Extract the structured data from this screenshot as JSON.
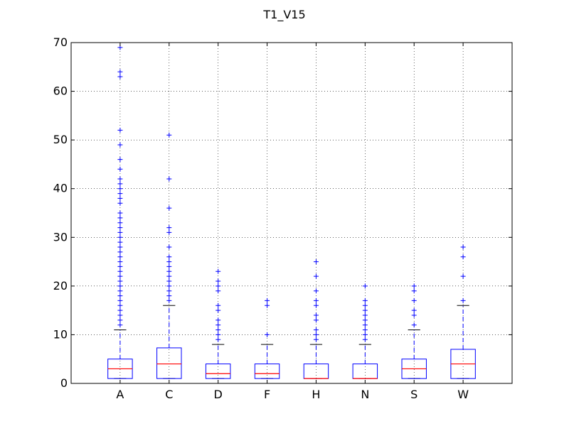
{
  "chart_data": {
    "type": "box",
    "title": "T1_V15",
    "xlabel": "",
    "ylabel": "",
    "ylim": [
      0,
      70
    ],
    "yticks": [
      0,
      10,
      20,
      30,
      40,
      50,
      60,
      70
    ],
    "grid": true,
    "colors": {
      "box": "#0000ff",
      "whisker": "#0000ff",
      "cap": "#000000",
      "median": "#ff0000",
      "flier": "#0000ff",
      "grid": "#000000"
    },
    "categories": [
      "A",
      "C",
      "D",
      "F",
      "H",
      "N",
      "S",
      "W"
    ],
    "boxes": [
      {
        "label": "A",
        "min": 1,
        "q1": 1,
        "median": 3,
        "q3": 5,
        "max": 11,
        "fliers": [
          12,
          13,
          14,
          15,
          16,
          17,
          18,
          19,
          20,
          21,
          22,
          23,
          24,
          25,
          26,
          27,
          28,
          29,
          30,
          31,
          32,
          33,
          34,
          35,
          37,
          38,
          39,
          40,
          41,
          42,
          44,
          46,
          49,
          52,
          63,
          64,
          69
        ]
      },
      {
        "label": "C",
        "min": 1,
        "q1": 1,
        "median": 4,
        "q3": 7.3,
        "max": 16,
        "fliers": [
          17,
          18,
          19,
          20,
          21,
          22,
          23,
          24,
          25,
          26,
          28,
          31,
          32,
          36,
          42,
          51
        ]
      },
      {
        "label": "D",
        "min": 1,
        "q1": 1,
        "median": 2,
        "q3": 4,
        "max": 8,
        "fliers": [
          9,
          10,
          11,
          12,
          13,
          15,
          16,
          19,
          20,
          21,
          23
        ]
      },
      {
        "label": "F",
        "min": 1,
        "q1": 1,
        "median": 2,
        "q3": 4,
        "max": 8,
        "fliers": [
          10,
          16,
          17
        ]
      },
      {
        "label": "H",
        "min": 1,
        "q1": 1,
        "median": 1,
        "q3": 4,
        "max": 8,
        "fliers": [
          9,
          10,
          11,
          13,
          14,
          16,
          17,
          19,
          22,
          25
        ]
      },
      {
        "label": "N",
        "min": 1,
        "q1": 1,
        "median": 1,
        "q3": 4,
        "max": 8,
        "fliers": [
          9,
          10,
          11,
          12,
          13,
          14,
          15,
          16,
          17,
          20
        ]
      },
      {
        "label": "S",
        "min": 1,
        "q1": 1,
        "median": 3,
        "q3": 5,
        "max": 11,
        "fliers": [
          12,
          14,
          15,
          17,
          19,
          20
        ]
      },
      {
        "label": "W",
        "min": 1,
        "q1": 1,
        "median": 4,
        "q3": 7,
        "max": 16,
        "fliers": [
          17,
          22,
          26,
          28
        ]
      }
    ]
  }
}
